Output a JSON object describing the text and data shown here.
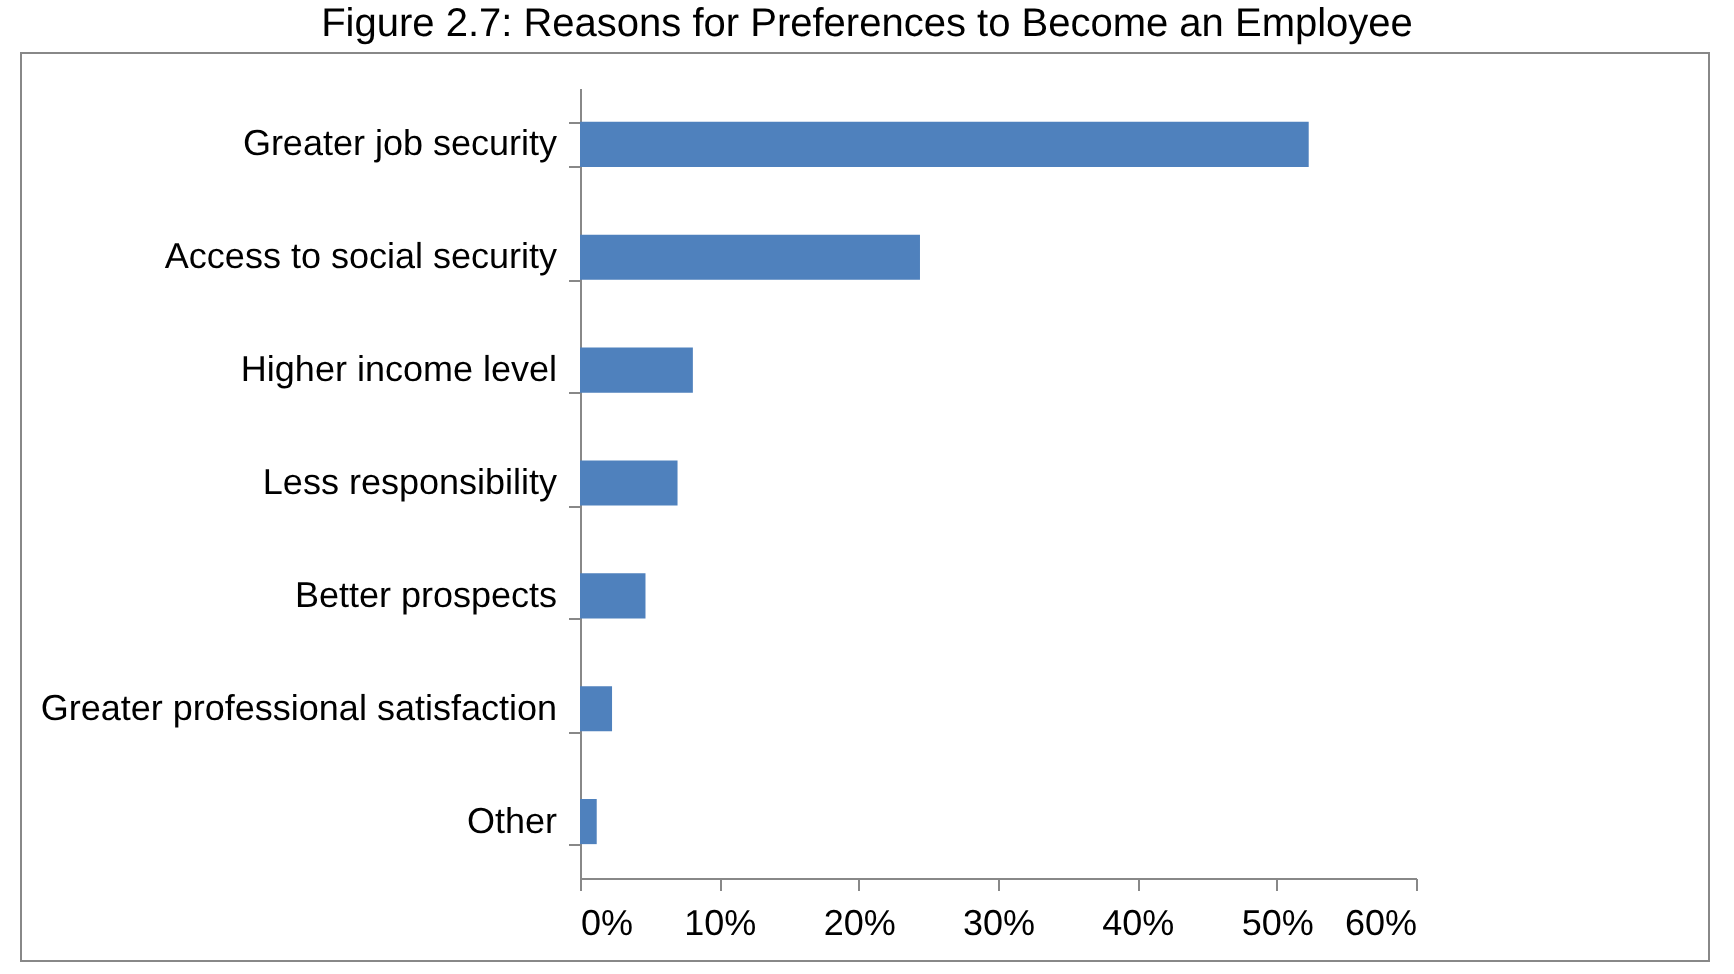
{
  "chart_data": {
    "type": "bar",
    "orientation": "horizontal",
    "title": "Figure 2.7: Reasons for Preferences to Become an Employee",
    "categories": [
      "Greater job security",
      "Access to social security",
      "Higher income level",
      "Less responsibility",
      "Better prospects",
      "Greater professional satisfaction",
      "Other"
    ],
    "values": [
      52.3,
      24.4,
      8.1,
      7.0,
      4.7,
      2.3,
      1.2
    ],
    "color": "#4f81bd",
    "xlim": [
      0,
      60
    ],
    "xticks": [
      {
        "value": 0,
        "label": "0%"
      },
      {
        "value": 10,
        "label": "10%"
      },
      {
        "value": 20,
        "label": "20%"
      },
      {
        "value": 30,
        "label": "30%"
      },
      {
        "value": 40,
        "label": "40%"
      },
      {
        "value": 50,
        "label": "50%"
      },
      {
        "value": 60,
        "label": "60%"
      }
    ],
    "grid": false
  }
}
